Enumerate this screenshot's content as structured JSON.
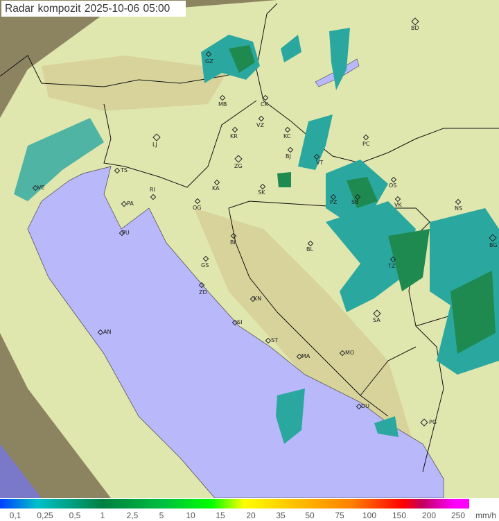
{
  "title": "Radar kompozit  2025-10-06  05:00",
  "colors": {
    "sea": "#b8b8fa",
    "land": "#dfe6ae",
    "outside": "#8c8460",
    "echo_light": "#2aa8a0",
    "echo_dark": "#1f8a50"
  },
  "cities": [
    "BD",
    "GZ",
    "MB",
    "CK",
    "VZ",
    "KR",
    "KC",
    "PC",
    "LJ",
    "ZG",
    "BJ",
    "VT",
    "TS",
    "RI",
    "KA",
    "SK",
    "OS",
    "VE",
    "PA",
    "OG",
    "PZ",
    "SB",
    "VK",
    "NS",
    "PU",
    "BI",
    "BL",
    "BG",
    "GS",
    "TZ",
    "ZD",
    "KN",
    "SI",
    "SA",
    "AN",
    "ST",
    "MA",
    "MO",
    "DU",
    "PG"
  ],
  "legend": {
    "ticks": [
      "0,1",
      "0,25",
      "0,5",
      "1",
      "2,5",
      "5",
      "10",
      "15",
      "20",
      "35",
      "50",
      "75",
      "100",
      "150",
      "200",
      "250"
    ],
    "unit": "mm/h"
  }
}
